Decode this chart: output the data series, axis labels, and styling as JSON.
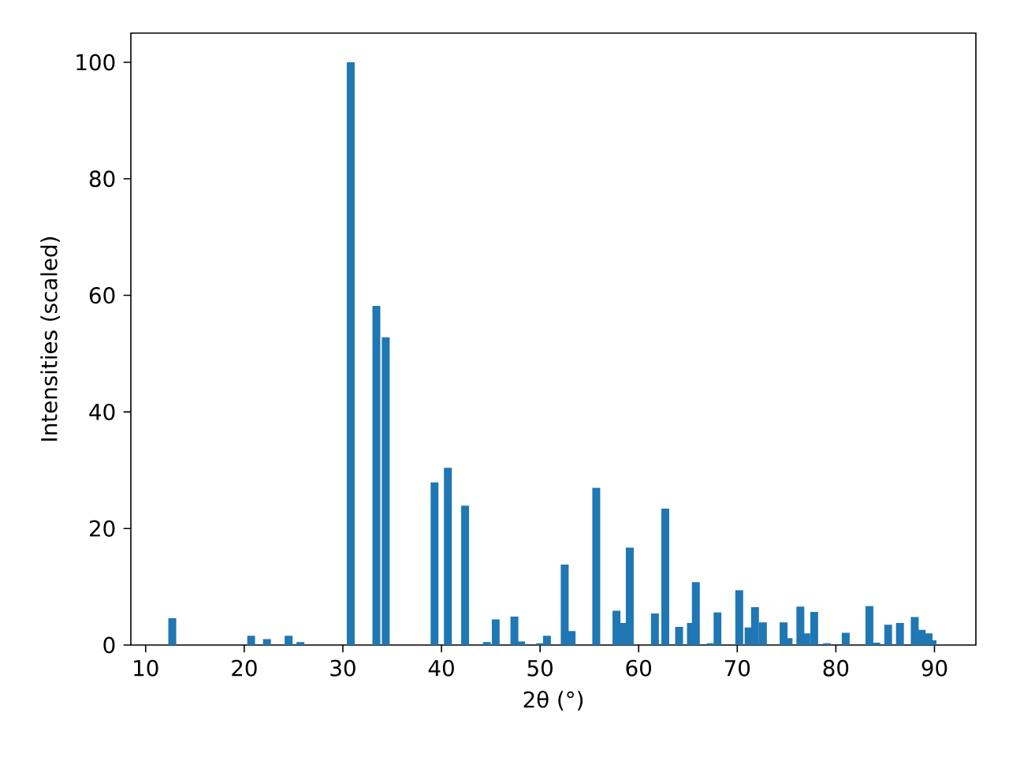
{
  "chart_data": {
    "type": "bar",
    "xlabel": "2θ (°)",
    "ylabel": "Intensities (scaled)",
    "color": "#1f77b4",
    "x": [
      12.7,
      20.7,
      22.3,
      24.5,
      25.7,
      30.8,
      33.4,
      34.35,
      39.3,
      40.65,
      42.4,
      44.6,
      45.5,
      47.4,
      48.1,
      50.0,
      50.7,
      52.5,
      53.2,
      55.7,
      57.75,
      58.5,
      59.1,
      61.65,
      62.7,
      64.1,
      65.3,
      65.8,
      67.3,
      68.0,
      70.2,
      71.15,
      71.8,
      72.6,
      74.7,
      75.2,
      76.4,
      77.0,
      77.8,
      79.1,
      81.0,
      83.4,
      84.1,
      85.3,
      86.5,
      88.0,
      88.7,
      89.4,
      89.8
    ],
    "values": [
      4.6,
      1.6,
      1.0,
      1.6,
      0.5,
      100,
      58.2,
      52.8,
      27.9,
      30.4,
      23.9,
      0.5,
      4.4,
      4.9,
      0.6,
      0.3,
      1.6,
      13.8,
      2.4,
      27.0,
      5.9,
      3.8,
      16.7,
      5.4,
      23.4,
      3.1,
      3.8,
      10.8,
      0.3,
      5.6,
      9.4,
      3.0,
      6.5,
      3.9,
      3.9,
      1.2,
      6.6,
      2.0,
      5.7,
      0.3,
      2.1,
      6.7,
      0.4,
      3.5,
      3.8,
      4.8,
      2.6,
      2.0,
      0.8
    ],
    "xlim": [
      8.5,
      94.2
    ],
    "ylim": [
      0,
      105
    ],
    "xticks": [
      10,
      20,
      30,
      40,
      50,
      60,
      70,
      80,
      90
    ],
    "yticks": [
      0,
      20,
      40,
      60,
      80,
      100
    ]
  }
}
